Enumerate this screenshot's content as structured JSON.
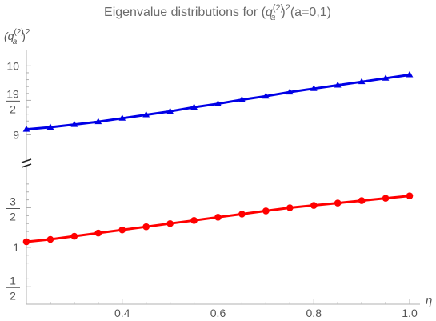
{
  "chart_data": {
    "type": "line",
    "title": {
      "prefix": "Eigenvalue distributions for (",
      "q": "q",
      "sub": "a",
      "sup": "(2)",
      "pow": "2",
      "suffix": "(a=0,1)"
    },
    "ylabel": {
      "q": "(q",
      "sub": "a",
      "sup": "(2)",
      "pow": ")2"
    },
    "xlabel": "η",
    "xlim": [
      0.2,
      1.0
    ],
    "x_ticks": [
      {
        "value": 0.4,
        "label": "0.4"
      },
      {
        "value": 0.6,
        "label": "0.6"
      },
      {
        "value": 0.8,
        "label": "0.8"
      },
      {
        "value": 1.0,
        "label": "1.0"
      }
    ],
    "y_break": true,
    "upper_panel": {
      "ylim": [
        8.82,
        10.12
      ],
      "ticks": [
        {
          "value": 9,
          "label": "9"
        },
        {
          "value": 9.5,
          "numerator": "19",
          "denominator": "2"
        },
        {
          "value": 10,
          "label": "10"
        }
      ]
    },
    "lower_panel": {
      "ylim": [
        0.28,
        1.92
      ],
      "ticks": [
        {
          "value": 0.5,
          "numerator": "1",
          "denominator": "2"
        },
        {
          "value": 1,
          "label": "1"
        },
        {
          "value": 1.5,
          "numerator": "3",
          "denominator": "2"
        }
      ]
    },
    "series": [
      {
        "panel": "upper",
        "color": "#0000e6",
        "marker": "triangle",
        "x": [
          0.2,
          0.25,
          0.3,
          0.35,
          0.4,
          0.45,
          0.5,
          0.55,
          0.6,
          0.65,
          0.7,
          0.75,
          0.8,
          0.85,
          0.9,
          0.95,
          1.0
        ],
        "y": [
          9.08,
          9.11,
          9.15,
          9.19,
          9.24,
          9.29,
          9.34,
          9.4,
          9.45,
          9.51,
          9.56,
          9.62,
          9.67,
          9.72,
          9.77,
          9.82,
          9.87
        ]
      },
      {
        "panel": "lower",
        "color": "#ff0000",
        "marker": "circle",
        "x": [
          0.2,
          0.25,
          0.3,
          0.35,
          0.4,
          0.45,
          0.5,
          0.55,
          0.6,
          0.65,
          0.7,
          0.75,
          0.8,
          0.85,
          0.9,
          0.95,
          1.0
        ],
        "y": [
          1.07,
          1.1,
          1.14,
          1.18,
          1.22,
          1.26,
          1.3,
          1.34,
          1.38,
          1.42,
          1.46,
          1.5,
          1.53,
          1.56,
          1.59,
          1.62,
          1.65
        ]
      }
    ],
    "grid": false,
    "legend": "none"
  }
}
